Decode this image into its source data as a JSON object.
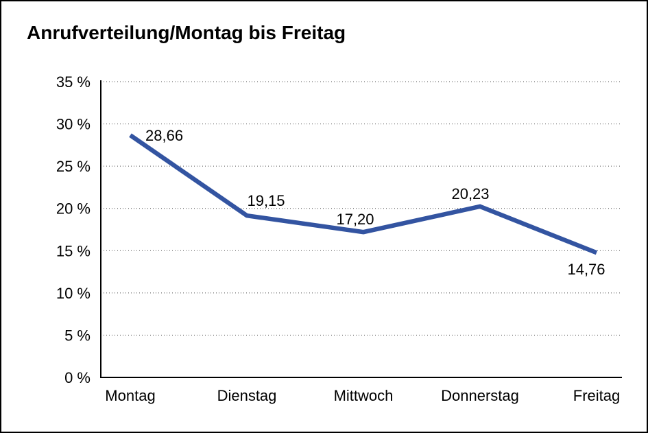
{
  "chart_data": {
    "type": "line",
    "title": "Anrufverteilung/Montag bis Freitag",
    "categories": [
      "Montag",
      "Dienstag",
      "Mittwoch",
      "Donnerstag",
      "Freitag"
    ],
    "series": [
      {
        "name": "Anrufverteilung",
        "values": [
          28.66,
          19.15,
          17.2,
          20.23,
          14.76
        ],
        "value_labels": [
          "28,66",
          "19,15",
          "17,20",
          "20,23",
          "14,76"
        ]
      }
    ],
    "xlabel": "",
    "ylabel": "",
    "ylim": [
      0,
      35
    ],
    "y_ticks": [
      0,
      5,
      10,
      15,
      20,
      25,
      30,
      35
    ],
    "y_tick_suffix": " %",
    "grid": "horizontal-dotted",
    "legend": "none",
    "colors": {
      "line": "#3354a1",
      "text": "#000000",
      "axis": "#000000",
      "grid": "#4d4d4d",
      "background": "#ffffff",
      "border": "#000000"
    }
  }
}
